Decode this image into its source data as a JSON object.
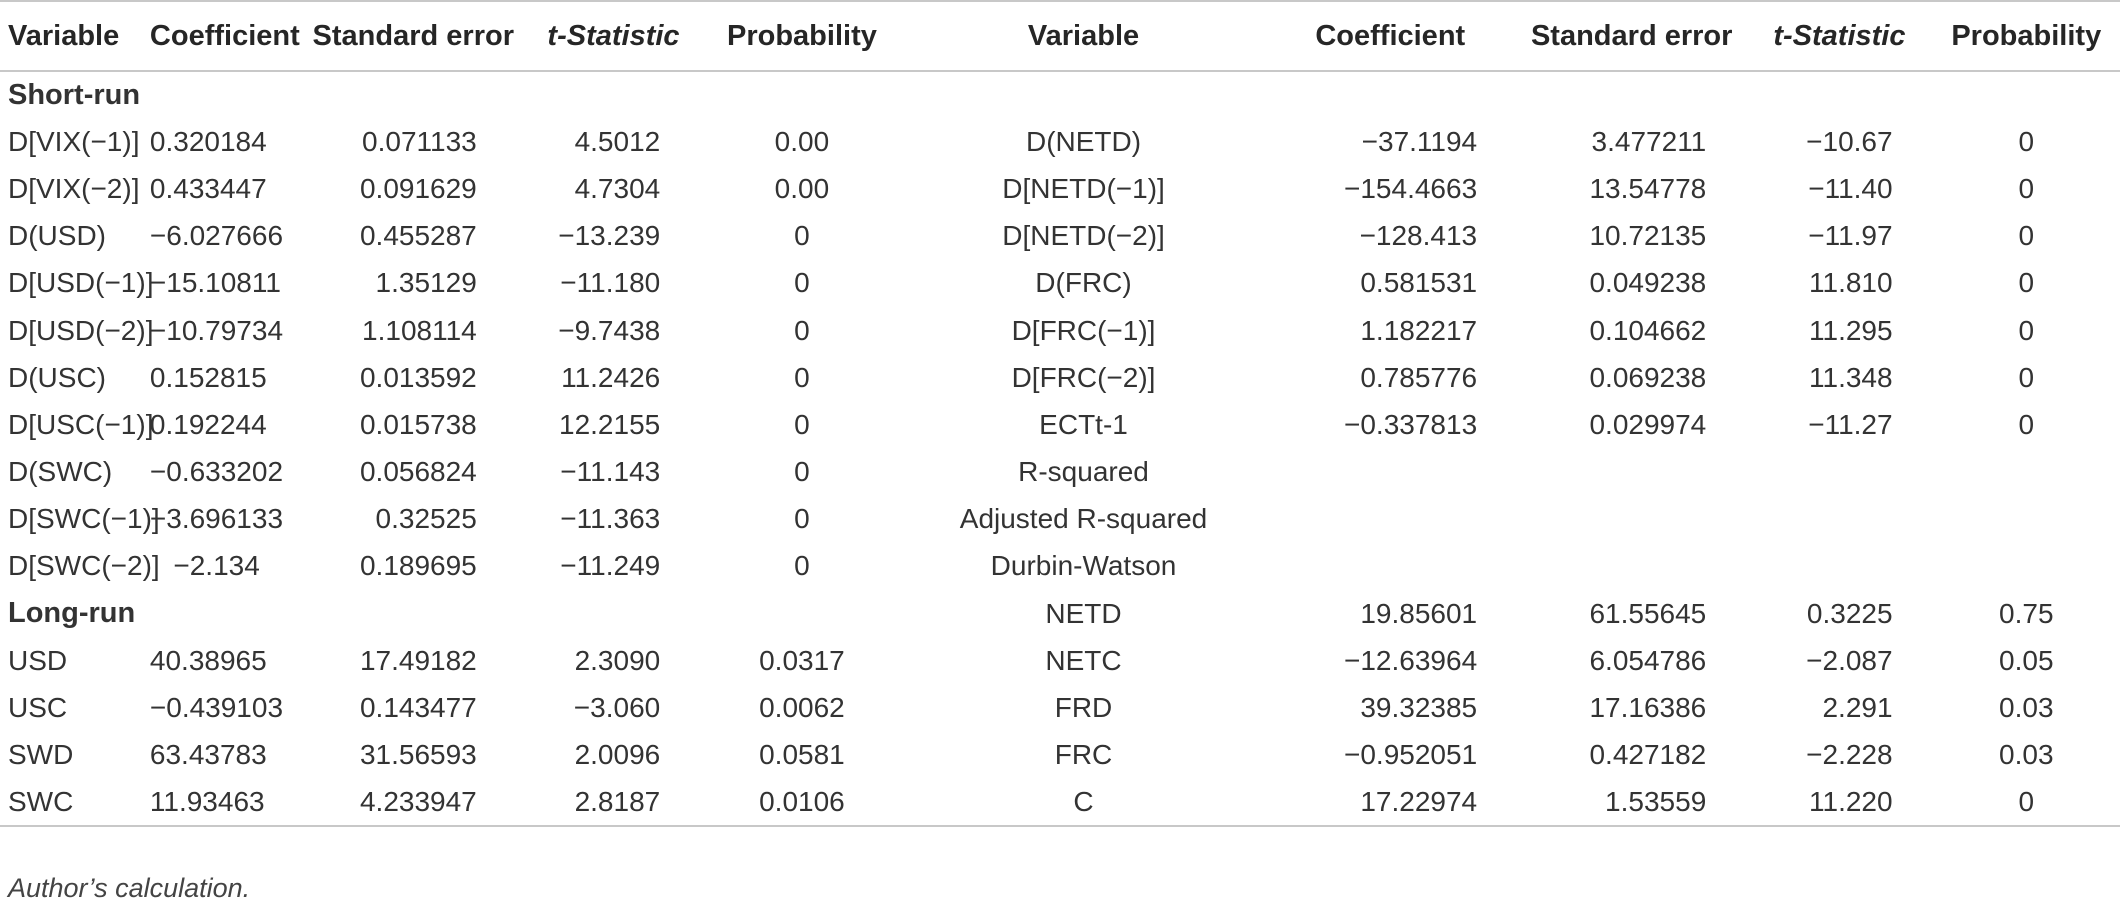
{
  "table": {
    "headers": {
      "left": [
        "Variable",
        "Coefficient",
        "Standard error",
        "t-Statistic",
        "Probability"
      ],
      "right": [
        "Variable",
        "Coefficient",
        "Standard error",
        "t-Statistic",
        "Probability"
      ]
    },
    "short_run_label": "Short-run",
    "short_run_rows": [
      {
        "l": [
          "D[VIX(−1)]",
          "0.320184",
          "0.071133",
          "4.5012",
          "0.00"
        ],
        "r": [
          "D(NETD)",
          "−37.1194",
          "3.477211",
          "−10.67",
          "0"
        ]
      },
      {
        "l": [
          "D[VIX(−2)]",
          "0.433447",
          "0.091629",
          "4.7304",
          "0.00"
        ],
        "r": [
          "D[NETD(−1)]",
          "−154.4663",
          "13.54778",
          "−11.40",
          "0"
        ]
      },
      {
        "l": [
          "D(USD)",
          "−6.027666",
          "0.455287",
          "−13.239",
          "0"
        ],
        "r": [
          "D[NETD(−2)]",
          "−128.413",
          "10.72135",
          "−11.97",
          "0"
        ]
      },
      {
        "l": [
          "D[USD(−1)]",
          "−15.10811",
          "1.35129",
          "−11.180",
          "0"
        ],
        "r": [
          "D(FRC)",
          "0.581531",
          "0.049238",
          "11.810",
          "0"
        ]
      },
      {
        "l": [
          "D[USD(−2)]",
          "−10.79734",
          "1.108114",
          "−9.7438",
          "0"
        ],
        "r": [
          "D[FRC(−1)]",
          "1.182217",
          "0.104662",
          "11.295",
          "0"
        ]
      },
      {
        "l": [
          "D(USC)",
          "0.152815",
          "0.013592",
          "11.2426",
          "0"
        ],
        "r": [
          "D[FRC(−2)]",
          "0.785776",
          "0.069238",
          "11.348",
          "0"
        ]
      },
      {
        "l": [
          "D[USC(−1)]",
          "0.192244",
          "0.015738",
          "12.2155",
          "0"
        ],
        "r": [
          "ECTt-1",
          "−0.337813",
          "0.029974",
          "−11.27",
          "0"
        ]
      },
      {
        "l": [
          "D(SWC)",
          "−0.633202",
          "0.056824",
          "−11.143",
          "0"
        ],
        "r": [
          "R-squared",
          "",
          "",
          "",
          ""
        ]
      },
      {
        "l": [
          "D[SWC(−1)]",
          "−3.696133",
          "0.32525",
          "−11.363",
          "0"
        ],
        "r": [
          "Adjusted R-squared",
          "",
          "",
          "",
          ""
        ]
      },
      {
        "l": [
          "D[SWC(−2)]",
          "−2.134",
          "0.189695",
          "−11.249",
          "0"
        ],
        "r": [
          "Durbin-Watson",
          "",
          "",
          "",
          ""
        ]
      }
    ],
    "long_run_label": "Long-run",
    "long_run_first_right": [
      "NETD",
      "19.85601",
      "61.55645",
      "0.3225",
      "0.75"
    ],
    "long_run_rows": [
      {
        "l": [
          "USD",
          "40.38965",
          "17.49182",
          "2.3090",
          "0.0317"
        ],
        "r": [
          "NETC",
          "−12.63964",
          "6.054786",
          "−2.087",
          "0.05"
        ]
      },
      {
        "l": [
          "USC",
          "−0.439103",
          "0.143477",
          "−3.060",
          "0.0062"
        ],
        "r": [
          "FRD",
          "39.32385",
          "17.16386",
          "2.291",
          "0.03"
        ]
      },
      {
        "l": [
          "SWD",
          "63.43783",
          "31.56593",
          "2.0096",
          "0.0581"
        ],
        "r": [
          "FRC",
          "−0.952051",
          "0.427182",
          "−2.228",
          "0.03"
        ]
      },
      {
        "l": [
          "SWC",
          "11.93463",
          "4.233947",
          "2.8187",
          "0.0106"
        ],
        "r": [
          "C",
          "17.22974",
          "1.53559",
          "11.220",
          "0"
        ]
      }
    ]
  },
  "footnote": "Author’s calculation."
}
